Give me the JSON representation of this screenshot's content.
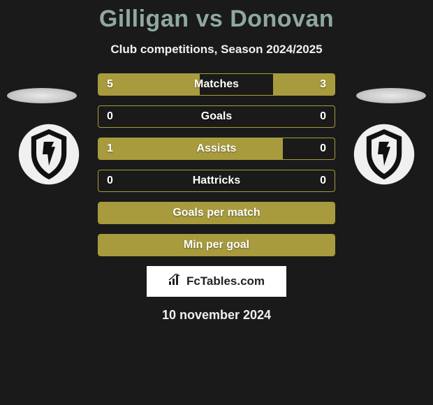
{
  "title": "Gilligan vs Donovan",
  "title_color": "#8fa8a0",
  "subtitle": "Club competitions, Season 2024/2025",
  "accent_color": "#a89b3e",
  "background_color": "#1a1a1a",
  "brand": {
    "label": "FcTables.com"
  },
  "date": "10 november 2024",
  "stats": [
    {
      "label": "Matches",
      "left_val": "5",
      "right_val": "3",
      "left_pct": 43,
      "right_pct": 26,
      "show_vals": true
    },
    {
      "label": "Goals",
      "left_val": "0",
      "right_val": "0",
      "left_pct": 0,
      "right_pct": 0,
      "show_vals": true
    },
    {
      "label": "Assists",
      "left_val": "1",
      "right_val": "0",
      "left_pct": 78,
      "right_pct": 0,
      "show_vals": true
    },
    {
      "label": "Hattricks",
      "left_val": "0",
      "right_val": "0",
      "left_pct": 0,
      "right_pct": 0,
      "show_vals": true
    },
    {
      "label": "Goals per match",
      "left_val": "",
      "right_val": "",
      "left_pct": 100,
      "right_pct": 0,
      "show_vals": false
    },
    {
      "label": "Min per goal",
      "left_val": "",
      "right_val": "",
      "left_pct": 100,
      "right_pct": 0,
      "show_vals": false
    }
  ]
}
